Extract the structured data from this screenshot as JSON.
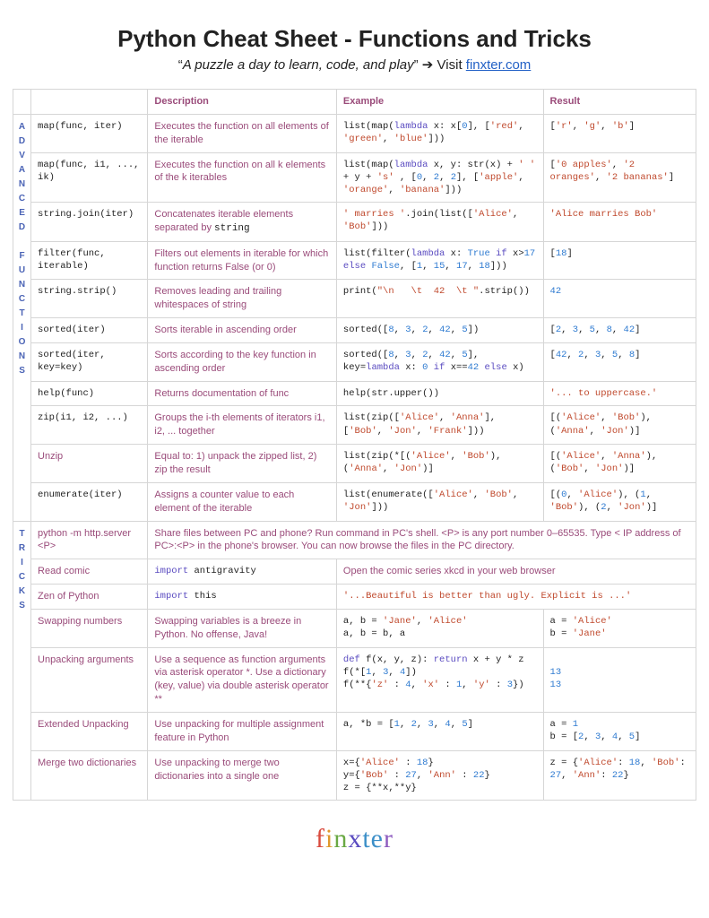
{
  "page": {
    "title": "Python Cheat Sheet - Functions and Tricks",
    "subtitle_prefix": "“",
    "subtitle_italic": "A puzzle a day to learn, code, and play",
    "subtitle_suffix": "” ➔ Visit ",
    "link_text": "finxter.com"
  },
  "headers": {
    "col_fn": "",
    "col_desc": "Description",
    "col_ex": "Example",
    "col_res": "Result"
  },
  "sections": [
    {
      "name": "ADVANCED FUNCTIONS",
      "rows": [
        {
          "fn": "map(func, iter)",
          "desc": "Executes the function on all elements of the iterable",
          "example": "list(map(<kw>lambda</kw> x: x[<num>0</num>], [<str>'red'</str>, <str>'green'</str>, <str>'blue'</str>]))",
          "result": "[<str>'r'</str>, <str>'g'</str>, <str>'b'</str>]"
        },
        {
          "fn": "map(func, i1, ..., ik)",
          "desc": "Executes the function on all k elements of the k iterables",
          "example": "list(map(<kw>lambda</kw> x, y: str(x) + <str>' '</str> + y + <str>'s'</str> , [<num>0</num>, <num>2</num>, <num>2</num>], [<str>'apple'</str>, <str>'orange'</str>, <str>'banana'</str>]))",
          "result": "[<str>'0 apples'</str>, <str>'2 oranges'</str>, <str>'2 bananas'</str>]"
        },
        {
          "fn": "string.join(iter)",
          "desc": "Concatenates iterable elements separated by <code>string</code>",
          "example": "<str>' marries '</str>.join(list([<str>'Alice'</str>, <str>'Bob'</str>]))",
          "result": "<str>'Alice marries Bob'</str>"
        },
        {
          "fn": "filter(func, iterable)",
          "desc": "Filters out elements in iterable for which function returns False (or 0)",
          "example": "list(filter(<kw>lambda</kw> x: <bool>True</bool> <kw>if</kw> x&gt;<num>17</num> <kw>else</kw> <bool>False</bool>, [<num>1</num>, <num>15</num>, <num>17</num>, <num>18</num>]))",
          "result": "[<num>18</num>]"
        },
        {
          "fn": "string.strip()",
          "desc": "Removes leading and trailing whitespaces of string",
          "example": "print(<str>\"\\n&nbsp;&nbsp;&nbsp;\\t&nbsp;&nbsp;42&nbsp;&nbsp;\\t \"</str>.strip())",
          "result": "<num>42</num>"
        },
        {
          "fn": "sorted(iter)",
          "desc": "Sorts iterable in ascending order",
          "example": "sorted([<num>8</num>, <num>3</num>, <num>2</num>, <num>42</num>, <num>5</num>])",
          "result": "[<num>2</num>, <num>3</num>, <num>5</num>, <num>8</num>, <num>42</num>]"
        },
        {
          "fn": "sorted(iter, key=key)",
          "desc": "Sorts according to the key function in ascending order",
          "example": "sorted([<num>8</num>, <num>3</num>, <num>2</num>, <num>42</num>, <num>5</num>], key=<kw>lambda</kw> x: <num>0</num> <kw>if</kw> x==<num>42</num> <kw>else</kw> x)",
          "result": "[<num>42</num>, <num>2</num>, <num>3</num>, <num>5</num>, <num>8</num>]"
        },
        {
          "fn": "help(func)",
          "desc": "Returns documentation of func",
          "example": "help(str.upper())",
          "result": "<str>'... to uppercase.'</str>"
        },
        {
          "fn": "zip(i1, i2, ...)",
          "desc": "Groups the i-th elements of iterators i1, i2, ... together",
          "example": "list(zip([<str>'Alice'</str>, <str>'Anna'</str>], [<str>'Bob'</str>, <str>'Jon'</str>, <str>'Frank'</str>]))",
          "result": "[(<str>'Alice'</str>, <str>'Bob'</str>), (<str>'Anna'</str>, <str>'Jon'</str>)]"
        },
        {
          "fn_desc": "Unzip",
          "desc": "Equal to: 1) unpack the zipped list, 2) zip the result",
          "example": "list(zip(*[(<str>'Alice'</str>, <str>'Bob'</str>), (<str>'Anna'</str>, <str>'Jon'</str>)]",
          "result": "[(<str>'Alice'</str>, <str>'Anna'</str>), (<str>'Bob'</str>, <str>'Jon'</str>)]"
        },
        {
          "fn": "enumerate(iter)",
          "desc": "Assigns a counter value to each element of the iterable",
          "example": "list(enumerate([<str>'Alice'</str>, <str>'Bob'</str>, <str>'Jon'</str>]))",
          "result": "[(<num>0</num>, <str>'Alice'</str>), (<num>1</num>, <str>'Bob'</str>), (<num>2</num>, <str>'Jon'</str>)]"
        }
      ]
    },
    {
      "name": "TRICKS",
      "rows": [
        {
          "fn_desc": "python -m http.server &lt;P&gt;",
          "desc_span": "Share files between PC and phone? Run command in PC's shell. &lt;P&gt; is any port number 0–65535. Type &lt; IP address of PC&gt;:&lt;P&gt; in the phone's browser. You can now browse the files in the PC directory."
        },
        {
          "fn_desc": "Read comic",
          "desc_code": "<kw>import</kw> antigravity",
          "ex_desc": "Open the comic series xkcd in your web browser"
        },
        {
          "fn_desc": "Zen of Python",
          "desc_code": "<kw>import</kw> this",
          "ex_code_span": "<str>'...Beautiful is better than ugly. Explicit is ...'</str>"
        },
        {
          "fn_desc": "Swapping numbers",
          "desc": "Swapping variables is a breeze in Python. No offense, Java!",
          "example": "a, b = <str>'Jane'</str>, <str>'Alice'</str><br>a, b = b, a",
          "result": "a = <str>'Alice'</str><br>b = <str>'Jane'</str>"
        },
        {
          "fn_desc": "Unpacking arguments",
          "desc": "Use a sequence as function arguments via asterisk operator *. Use a dictionary (key, value) via double asterisk operator **",
          "example": "<kw>def</kw> f(x, y, z): <kw>return</kw> x + y * z<br>f(*[<num>1</num>, <num>3</num>, <num>4</num>])<br>f(**{<str>'z'</str> : <num>4</num>, <str>'x'</str> : <num>1</num>, <str>'y'</str> : <num>3</num>})",
          "result": "<br><num>13</num><br><num>13</num>"
        },
        {
          "fn_desc": "Extended Unpacking",
          "desc": "Use unpacking for multiple assignment feature in Python",
          "example": "a, *b = [<num>1</num>, <num>2</num>, <num>3</num>, <num>4</num>, <num>5</num>]",
          "result": "a = <num>1</num><br>b = [<num>2</num>, <num>3</num>, <num>4</num>, <num>5</num>]"
        },
        {
          "fn_desc": "Merge two dictionaries",
          "desc": "Use unpacking to merge two dictionaries into a single one",
          "example": "x={<str>'Alice'</str> : <num>18</num>}<br>y={<str>'Bob'</str> : <num>27</num>, <str>'Ann'</str> : <num>22</num>}<br>z = {**x,**y}",
          "result": "z = {<str>'Alice'</str>: <num>18</num>, <str>'Bob'</str>: <num>27</num>, <str>'Ann'</str>: <num>22</num>}"
        }
      ]
    }
  ],
  "colors": {
    "desc_color": "#9a4b7a",
    "sidebar_color": "#4a63b5",
    "keyword_color": "#5a4bc0",
    "number_color": "#2f7bd1",
    "string_color": "#c04a2e",
    "border_color": "#d6d6d6",
    "link_color": "#2361c6"
  },
  "logo": "finxter"
}
